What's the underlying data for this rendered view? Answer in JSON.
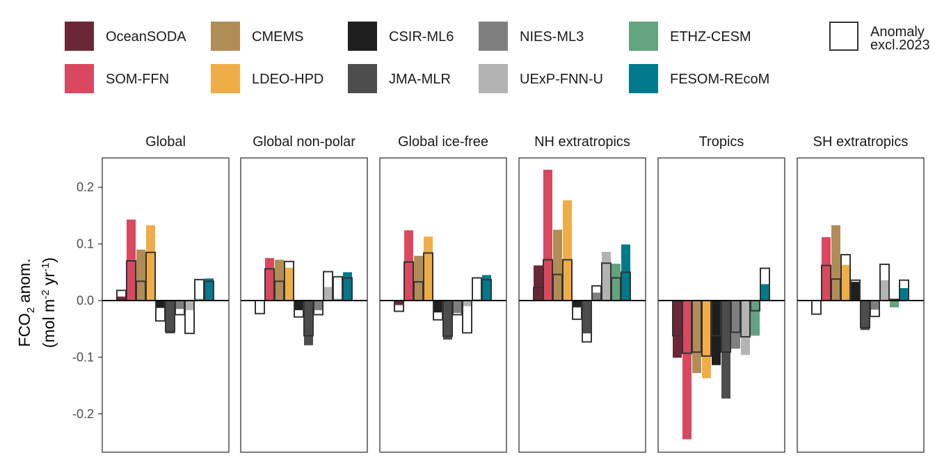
{
  "chart_data": {
    "type": "bar",
    "ylabel_main": "FCO",
    "ylabel_main_sub": "2",
    "ylabel_main_suffix": " anom.",
    "ylabel_unit_open": "(mol m",
    "ylabel_unit_sup1": "-2",
    "ylabel_unit_mid": " yr",
    "ylabel_unit_sup2": "-1",
    "ylabel_unit_close": ")",
    "ylim": [
      -0.265,
      0.25
    ],
    "yticks": [
      0.2,
      0.1,
      0.0,
      -0.1,
      -0.2
    ],
    "ytick_labels": [
      "0.2",
      "0.1",
      "0.0",
      "-0.1",
      "-0.2"
    ],
    "outline_legend_label_line1": "Anomaly",
    "outline_legend_label_line2": "excl.2023",
    "products": [
      {
        "name": "OceanSODA",
        "color": "#6B2737"
      },
      {
        "name": "SOM-FFN",
        "color": "#D9485F"
      },
      {
        "name": "CMEMS",
        "color": "#B08D57"
      },
      {
        "name": "LDEO-HPD",
        "color": "#F0AD47"
      },
      {
        "name": "CSIR-ML6",
        "color": "#1F1F1F"
      },
      {
        "name": "JMA-MLR",
        "color": "#4D4D4D"
      },
      {
        "name": "NIES-ML3",
        "color": "#7F7F7F"
      },
      {
        "name": "UExP-FNN-U",
        "color": "#B3B3B3"
      },
      {
        "name": "ETHZ-CESM",
        "color": "#63A37F"
      },
      {
        "name": "FESOM-REcoM",
        "color": "#00798C"
      }
    ],
    "legend_order": [
      [
        "OceanSODA",
        "SOM-FFN"
      ],
      [
        "CMEMS",
        "LDEO-HPD"
      ],
      [
        "CSIR-ML6",
        "JMA-MLR"
      ],
      [
        "NIES-ML3",
        "UExP-FNN-U"
      ],
      [
        "ETHZ-CESM",
        "FESOM-REcoM"
      ]
    ],
    "panels": [
      {
        "title": "Global",
        "anomaly": [
          0.007,
          0.143,
          0.09,
          0.133,
          -0.013,
          -0.058,
          -0.015,
          -0.017,
          0.003,
          0.039
        ],
        "anomaly_excl_2023": [
          0.018,
          0.07,
          0.034,
          0.085,
          -0.036,
          -0.055,
          -0.025,
          -0.058,
          0.037,
          0.034
        ]
      },
      {
        "title": "Global non-polar",
        "anomaly": [
          0.0,
          0.075,
          0.072,
          0.058,
          -0.017,
          -0.079,
          -0.017,
          0.024,
          0.003,
          0.05
        ],
        "anomaly_excl_2023": [
          -0.023,
          0.056,
          0.034,
          0.069,
          -0.029,
          -0.062,
          -0.025,
          0.051,
          0.042,
          0.04
        ]
      },
      {
        "title": "Global ice-free",
        "anomaly": [
          -0.008,
          0.124,
          0.079,
          0.113,
          -0.021,
          -0.069,
          -0.022,
          -0.01,
          0.002,
          0.045
        ],
        "anomaly_excl_2023": [
          -0.019,
          0.068,
          0.033,
          0.084,
          -0.034,
          -0.063,
          -0.025,
          -0.057,
          0.04,
          0.037
        ]
      },
      {
        "title": "NH extratropics",
        "anomaly": [
          0.062,
          0.231,
          0.125,
          0.177,
          -0.012,
          -0.058,
          0.014,
          0.086,
          0.065,
          0.099
        ],
        "anomaly_excl_2023": [
          0.023,
          0.072,
          0.046,
          0.072,
          -0.033,
          -0.073,
          0.026,
          0.066,
          0.04,
          0.05
        ]
      },
      {
        "title": "Tropics",
        "anomaly": [
          -0.101,
          -0.245,
          -0.128,
          -0.137,
          -0.114,
          -0.173,
          -0.085,
          -0.096,
          -0.062,
          0.029
        ],
        "anomaly_excl_2023": [
          -0.062,
          -0.093,
          -0.091,
          -0.098,
          -0.062,
          -0.091,
          -0.056,
          -0.064,
          -0.018,
          0.057
        ]
      },
      {
        "title": "SH extratropics",
        "anomaly": [
          0.0,
          0.112,
          0.133,
          0.063,
          0.033,
          -0.052,
          -0.016,
          0.036,
          -0.012,
          0.022
        ],
        "anomaly_excl_2023": [
          -0.024,
          0.062,
          0.038,
          0.081,
          0.036,
          -0.048,
          -0.028,
          0.064,
          0.002,
          0.036
        ]
      }
    ]
  }
}
